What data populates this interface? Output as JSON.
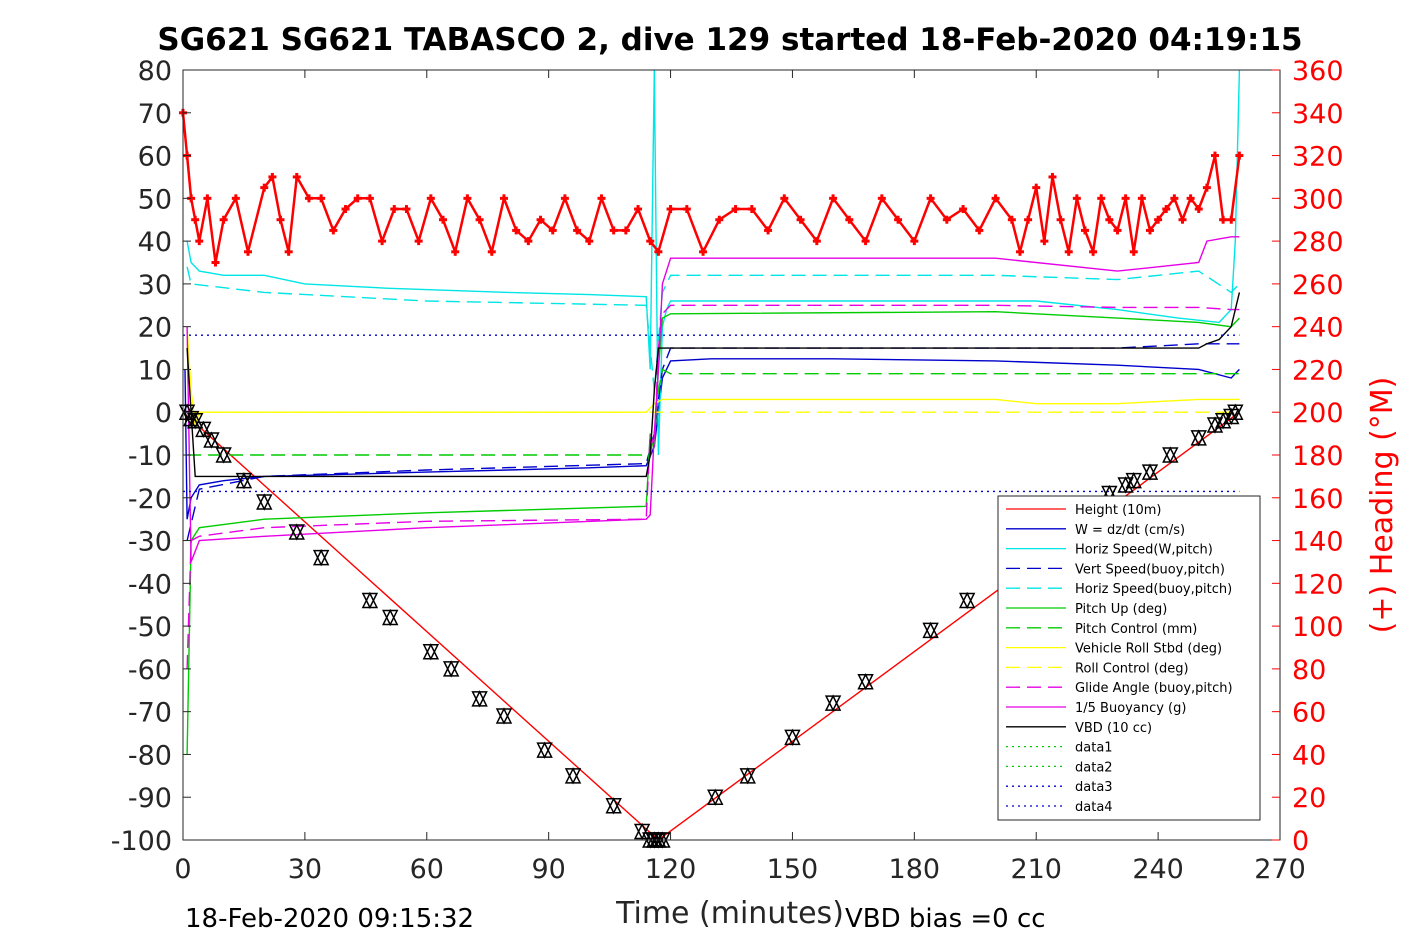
{
  "chart_data": {
    "type": "line",
    "title": "SG621 SG621 TABASCO 2, dive 129 started 18-Feb-2020 04:19:15",
    "xlabel": "Time (minutes)",
    "ylabel_right": "(+) Heading (°M)",
    "xlim": [
      0,
      270
    ],
    "ylim": [
      -100,
      80
    ],
    "ylim_right": [
      0,
      360
    ],
    "x_ticks": [
      "0",
      "30",
      "60",
      "90",
      "120",
      "150",
      "180",
      "210",
      "240",
      "270"
    ],
    "y_ticks": [
      "80",
      "70",
      "60",
      "50",
      "40",
      "30",
      "20",
      "10",
      "0",
      "-10",
      "-20",
      "-30",
      "-40",
      "-50",
      "-60",
      "-70",
      "-80",
      "-90",
      "-100"
    ],
    "y_ticks_right": [
      "360",
      "340",
      "320",
      "300",
      "280",
      "260",
      "240",
      "220",
      "200",
      "180",
      "160",
      "140",
      "120",
      "100",
      "80",
      "60",
      "40",
      "20",
      "0"
    ],
    "legend_position": "lower-right inside",
    "colors": {
      "height": "#ff0000",
      "w": "#0000cc",
      "horiz": "#00e5e5",
      "pitch": "#00cc00",
      "roll": "#ffff00",
      "glide": "#e600e6",
      "vbd": "#000000",
      "heading": "#ff0000"
    },
    "series": [
      {
        "name": "Height (10m)",
        "color": "#ff0000",
        "style": "solid",
        "x": [
          0,
          117,
          260
        ],
        "y": [
          0,
          -100,
          0
        ]
      },
      {
        "name": "W = dz/dt (cm/s)",
        "color": "#0000cc",
        "style": "solid",
        "x": [
          0.5,
          1,
          2,
          4,
          10,
          20,
          40,
          60,
          80,
          100,
          114,
          116,
          118,
          120,
          130,
          160,
          200,
          230,
          250,
          258,
          260
        ],
        "y": [
          10,
          -25,
          -20,
          -17,
          -16,
          -15,
          -14.5,
          -14,
          -13.5,
          -13,
          -12.5,
          -8,
          8,
          12,
          12.5,
          12.5,
          12,
          11,
          10,
          8,
          10
        ]
      },
      {
        "name": "Horiz Speed(W,pitch)",
        "color": "#00e5e5",
        "style": "solid",
        "x": [
          1,
          2,
          4,
          10,
          20,
          30,
          50,
          80,
          100,
          114,
          115,
          116,
          117,
          118,
          119,
          120,
          140,
          180,
          210,
          230,
          245,
          255,
          258,
          259,
          260
        ],
        "y": [
          40,
          35,
          33,
          32,
          32,
          30,
          29,
          28,
          27.5,
          27,
          10,
          80,
          -10,
          20,
          24,
          26,
          26,
          26,
          26,
          24,
          22,
          21,
          24,
          40,
          80
        ]
      },
      {
        "name": "Vert Speed(buoy,pitch)",
        "color": "#0000cc",
        "style": "dashed",
        "x": [
          1,
          4,
          20,
          60,
          114,
          116,
          118,
          120,
          200,
          230,
          250,
          260
        ],
        "y": [
          -30,
          -18,
          -15,
          -13.5,
          -12,
          -5,
          10,
          15,
          15,
          15,
          16,
          16
        ]
      },
      {
        "name": "Horiz Speed(buoy,pitch)",
        "color": "#00e5e5",
        "style": "dashed",
        "x": [
          1,
          2,
          20,
          60,
          114,
          116,
          118,
          120,
          200,
          230,
          250,
          258,
          260
        ],
        "y": [
          34,
          30,
          28,
          26,
          25,
          5,
          28,
          32,
          32,
          31,
          33,
          28,
          30
        ]
      },
      {
        "name": "Pitch Up (deg)",
        "color": "#00cc00",
        "style": "solid",
        "x": [
          1,
          2,
          4,
          20,
          60,
          114,
          115,
          116,
          117,
          118,
          120,
          200,
          230,
          250,
          258,
          260
        ],
        "y": [
          -80,
          -30,
          -27,
          -25,
          -23.5,
          -22,
          -5,
          -8,
          10,
          22,
          23,
          23.5,
          22,
          21,
          20,
          22
        ]
      },
      {
        "name": "Pitch Control (mm)",
        "color": "#00cc00",
        "style": "dashed",
        "x": [
          1,
          114,
          115,
          116,
          117,
          118,
          120,
          260
        ],
        "y": [
          -10,
          -10,
          -10,
          -5,
          5,
          10,
          9,
          9
        ]
      },
      {
        "name": "Vehicle Roll Stbd (deg)",
        "color": "#ffff00",
        "style": "solid",
        "x": [
          1,
          2,
          3,
          4,
          114,
          116,
          118,
          120,
          200,
          210,
          230,
          250,
          260
        ],
        "y": [
          20,
          5,
          -3,
          0,
          0,
          2,
          3,
          3,
          3,
          2,
          2,
          3,
          3
        ]
      },
      {
        "name": "Roll Control (deg)",
        "color": "#ffff00",
        "style": "dashed",
        "x": [
          1,
          260
        ],
        "y": [
          0,
          0
        ]
      },
      {
        "name": "Glide Angle (buoy,pitch)",
        "color": "#e600e6",
        "style": "dashed",
        "x": [
          1,
          2,
          4,
          20,
          60,
          114,
          115,
          116,
          117,
          118,
          120,
          200,
          230,
          250,
          258,
          260
        ],
        "y": [
          -60,
          -30,
          -29,
          -27,
          -25.5,
          -25,
          -5,
          -8,
          15,
          23,
          25,
          25,
          24.5,
          24.5,
          24,
          24
        ]
      },
      {
        "name": "1/5 Buoyancy (g)",
        "color": "#e600e6",
        "style": "solid",
        "x": [
          1,
          2,
          4,
          20,
          60,
          114,
          115,
          116,
          117,
          118,
          120,
          200,
          230,
          250,
          252,
          258,
          260
        ],
        "y": [
          20,
          -35,
          -30,
          -29,
          -27,
          -25,
          -24,
          -5,
          10,
          30,
          36,
          36,
          33,
          35,
          40,
          41,
          41
        ]
      },
      {
        "name": "VBD (10 cc)",
        "color": "#000000",
        "style": "solid",
        "x": [
          1,
          2,
          3,
          4,
          114,
          115,
          116,
          117,
          118,
          250,
          252,
          255,
          258,
          260
        ],
        "y": [
          15,
          0,
          -15,
          -15,
          -15,
          -10,
          5,
          15,
          15,
          15,
          16,
          17,
          20,
          28
        ]
      },
      {
        "name": "data1",
        "color": "#00cc00",
        "style": "dotted",
        "x": [],
        "y": []
      },
      {
        "name": "data2",
        "color": "#00cc00",
        "style": "dotted",
        "x": [],
        "y": []
      },
      {
        "name": "data3",
        "color": "#0000cc",
        "style": "dotted",
        "x": [
          0,
          260
        ],
        "y": [
          18,
          18
        ]
      },
      {
        "name": "data4",
        "color": "#0000cc",
        "style": "dotted",
        "x": [
          0,
          260
        ],
        "y": [
          -18.5,
          -18.5
        ]
      }
    ],
    "heading": {
      "axis": "right",
      "color": "#ff0000",
      "x": [
        0,
        1,
        2,
        3,
        4,
        6,
        8,
        10,
        13,
        16,
        20,
        22,
        24,
        26,
        28,
        31,
        34,
        37,
        40,
        43,
        46,
        49,
        52,
        55,
        58,
        61,
        64,
        67,
        70,
        73,
        76,
        79,
        82,
        85,
        88,
        91,
        94,
        97,
        100,
        103,
        106,
        109,
        112,
        115,
        117,
        120,
        124,
        128,
        132,
        136,
        140,
        144,
        148,
        152,
        156,
        160,
        164,
        168,
        172,
        176,
        180,
        184,
        188,
        192,
        196,
        200,
        204,
        206,
        208,
        210,
        212,
        214,
        216,
        218,
        220,
        222,
        224,
        226,
        228,
        230,
        232,
        234,
        236,
        238,
        240,
        242,
        244,
        246,
        248,
        250,
        252,
        254,
        256,
        258,
        260
      ],
      "y": [
        340,
        320,
        300,
        290,
        280,
        300,
        270,
        290,
        300,
        275,
        305,
        310,
        290,
        275,
        310,
        300,
        300,
        285,
        295,
        300,
        300,
        280,
        295,
        295,
        280,
        300,
        290,
        275,
        300,
        290,
        275,
        300,
        285,
        280,
        290,
        285,
        300,
        285,
        280,
        300,
        285,
        285,
        295,
        280,
        275,
        295,
        295,
        275,
        290,
        295,
        295,
        285,
        300,
        290,
        280,
        300,
        290,
        280,
        300,
        290,
        280,
        300,
        290,
        295,
        285,
        300,
        290,
        275,
        290,
        305,
        280,
        310,
        290,
        275,
        300,
        285,
        275,
        300,
        290,
        285,
        300,
        275,
        300,
        285,
        290,
        295,
        300,
        290,
        300,
        295,
        305,
        320,
        290,
        290,
        320
      ]
    },
    "markers": {
      "x": [
        1,
        2,
        3,
        5,
        7,
        10,
        15,
        20,
        28,
        34,
        46,
        51,
        61,
        66,
        73,
        79,
        89,
        96,
        106,
        113,
        115,
        116,
        117,
        118,
        131,
        139,
        150,
        160,
        168,
        184,
        193,
        228,
        232,
        234,
        238,
        243,
        250,
        254,
        256,
        258,
        259
      ],
      "y": [
        0,
        -1.5,
        -2,
        -4,
        -6.5,
        -10,
        -16,
        -21,
        -28,
        -34,
        -44,
        -48,
        -56,
        -60,
        -67,
        -71,
        -79,
        -85,
        -92,
        -98,
        -100,
        -100,
        -100,
        -100,
        -90,
        -85,
        -76,
        -68,
        -63,
        -51,
        -44,
        -19,
        -17,
        -16,
        -14,
        -10,
        -6,
        -3,
        -2,
        -1,
        0
      ]
    },
    "footer_left": "18-Feb-2020 09:15:32",
    "footer_right": "VBD bias =0 cc"
  }
}
